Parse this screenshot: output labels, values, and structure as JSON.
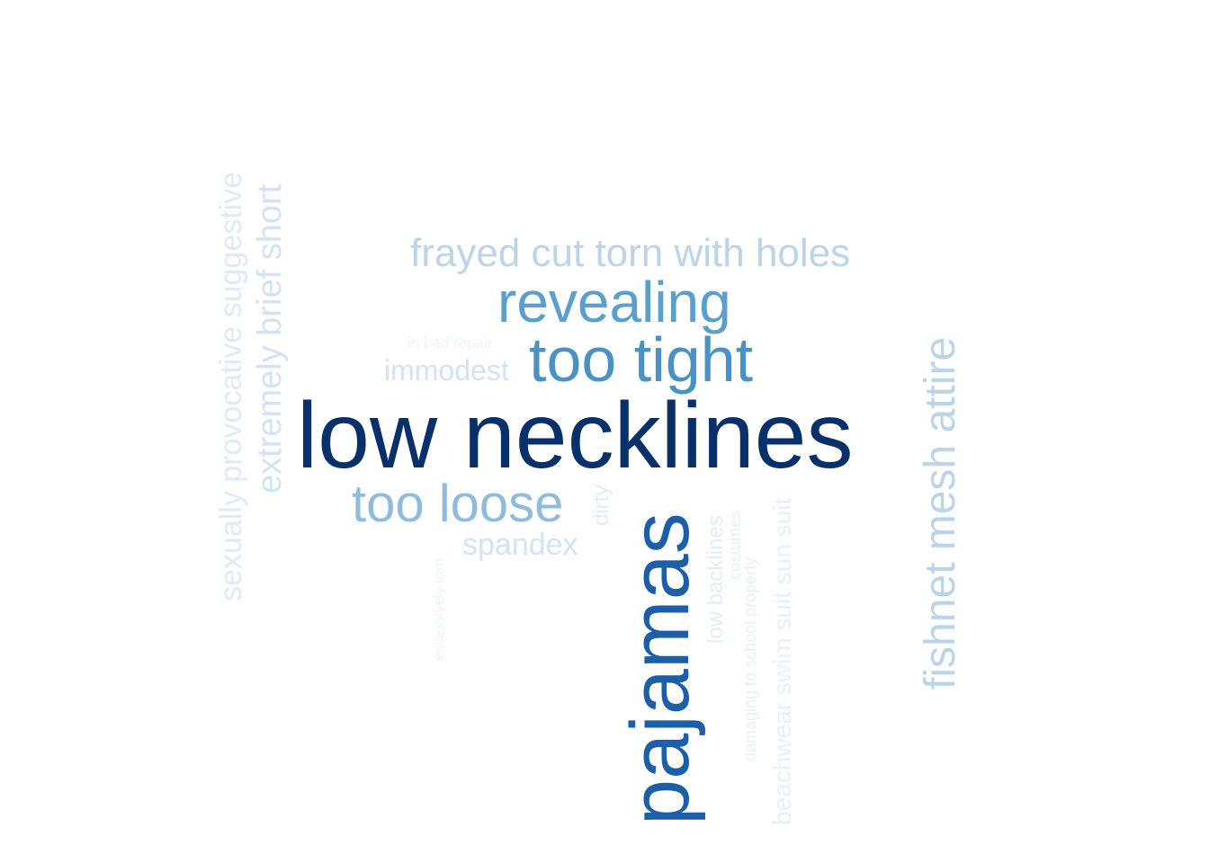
{
  "chart_data": {
    "type": "wordcloud",
    "title": "",
    "words": [
      {
        "text": "low necklines",
        "weight": 100,
        "color": "#08306b",
        "rotated": false
      },
      {
        "text": "pajamas",
        "weight": 88,
        "color": "#1d5ea9",
        "rotated": true
      },
      {
        "text": "too tight",
        "weight": 62,
        "color": "#4a92c6",
        "rotated": false
      },
      {
        "text": "revealing",
        "weight": 60,
        "color": "#5a9fce",
        "rotated": false
      },
      {
        "text": "too loose",
        "weight": 54,
        "color": "#8fbcdd",
        "rotated": false
      },
      {
        "text": "fishnet mesh attire",
        "weight": 50,
        "color": "#bcd4ea",
        "rotated": true
      },
      {
        "text": "frayed cut torn with holes",
        "weight": 44,
        "color": "#bcd4ea",
        "rotated": false
      },
      {
        "text": "extremely brief short",
        "weight": 38,
        "color": "#d3e3f3",
        "rotated": true
      },
      {
        "text": "sexually provocative suggestive",
        "weight": 36,
        "color": "#deebf7",
        "rotated": true
      },
      {
        "text": "spandex",
        "weight": 30,
        "color": "#d3e3f3",
        "rotated": false
      },
      {
        "text": "immodest",
        "weight": 30,
        "color": "#d3e3f3",
        "rotated": false
      },
      {
        "text": "beachwear swim suit sun suit",
        "weight": 28,
        "color": "#e8f0f9",
        "rotated": true
      },
      {
        "text": "low backlines",
        "weight": 24,
        "color": "#e3edf8",
        "rotated": true
      },
      {
        "text": "dirty",
        "weight": 24,
        "color": "#e3edf8",
        "rotated": true
      },
      {
        "text": "damaging to school property",
        "weight": 18,
        "color": "#e8f0f9",
        "rotated": true
      },
      {
        "text": "costumes",
        "weight": 18,
        "color": "#e8f0f9",
        "rotated": true
      },
      {
        "text": "excessively torn",
        "weight": 16,
        "color": "#eef4fb",
        "rotated": true
      },
      {
        "text": "in bad repair",
        "weight": 16,
        "color": "#eef4fb",
        "rotated": false
      }
    ]
  }
}
